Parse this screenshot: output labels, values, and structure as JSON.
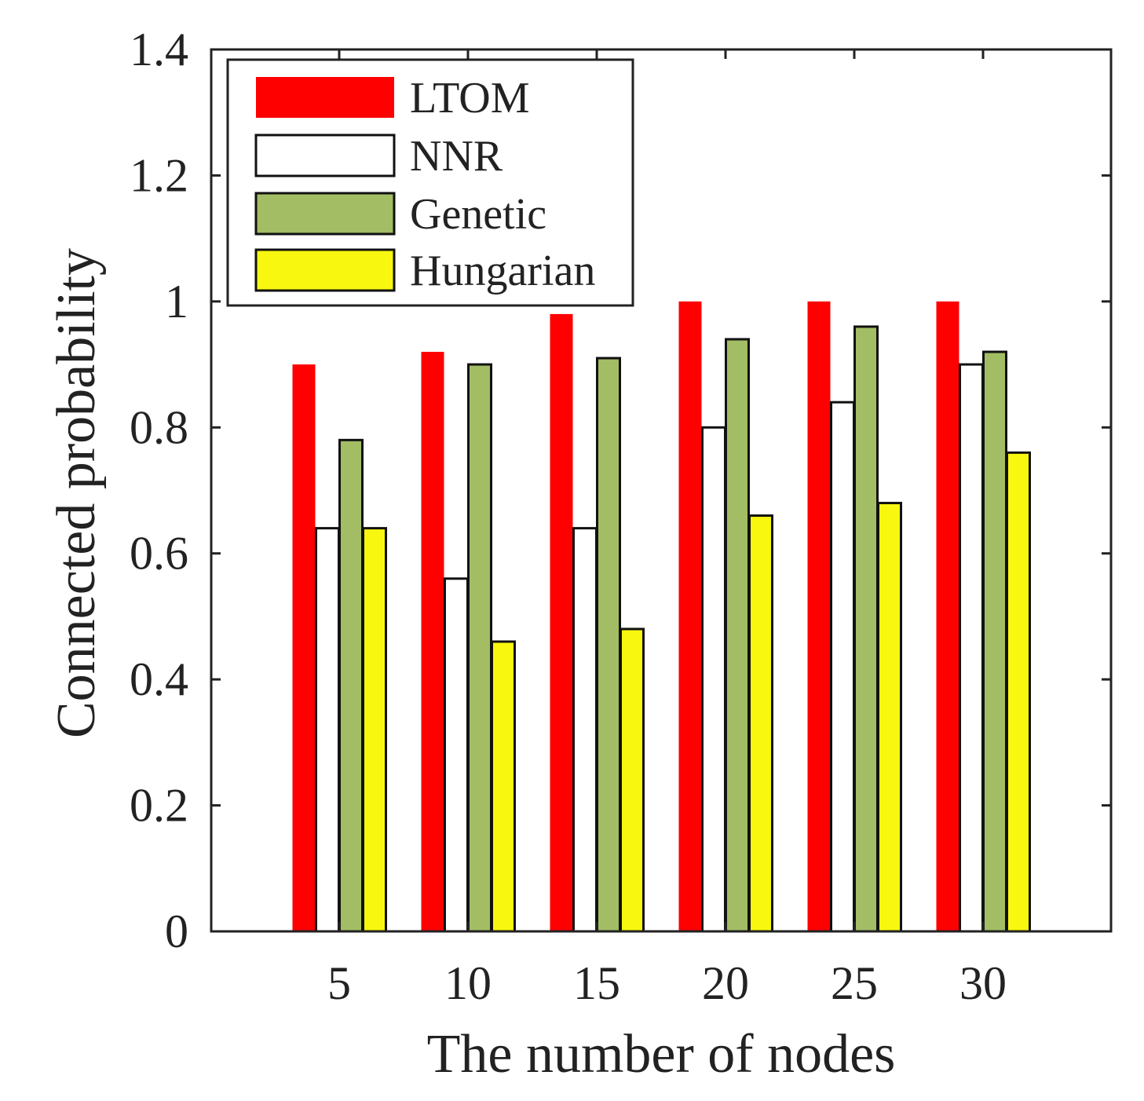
{
  "chart_data": {
    "type": "bar",
    "title": "",
    "xlabel": "The number of nodes",
    "ylabel": "Connected probability",
    "categories": [
      "5",
      "10",
      "15",
      "20",
      "25",
      "30"
    ],
    "ylim": [
      0,
      1.4
    ],
    "yticks": [
      "0",
      "0.2",
      "0.4",
      "0.6",
      "0.8",
      "1",
      "1.2",
      "1.4"
    ],
    "grid": false,
    "legend_position": "top-left",
    "series": [
      {
        "name": "LTOM",
        "color": "#ff0000",
        "values": [
          0.9,
          0.92,
          0.98,
          1.0,
          1.0,
          1.0
        ]
      },
      {
        "name": "NNR",
        "color": "#ffffff",
        "values": [
          0.64,
          0.56,
          0.64,
          0.8,
          0.84,
          0.9
        ]
      },
      {
        "name": "Genetic",
        "color": "#a2bd64",
        "values": [
          0.78,
          0.9,
          0.91,
          0.94,
          0.96,
          0.92
        ]
      },
      {
        "name": "Hungarian",
        "color": "#f7f70f",
        "values": [
          0.64,
          0.46,
          0.48,
          0.66,
          0.68,
          0.76
        ]
      }
    ]
  }
}
